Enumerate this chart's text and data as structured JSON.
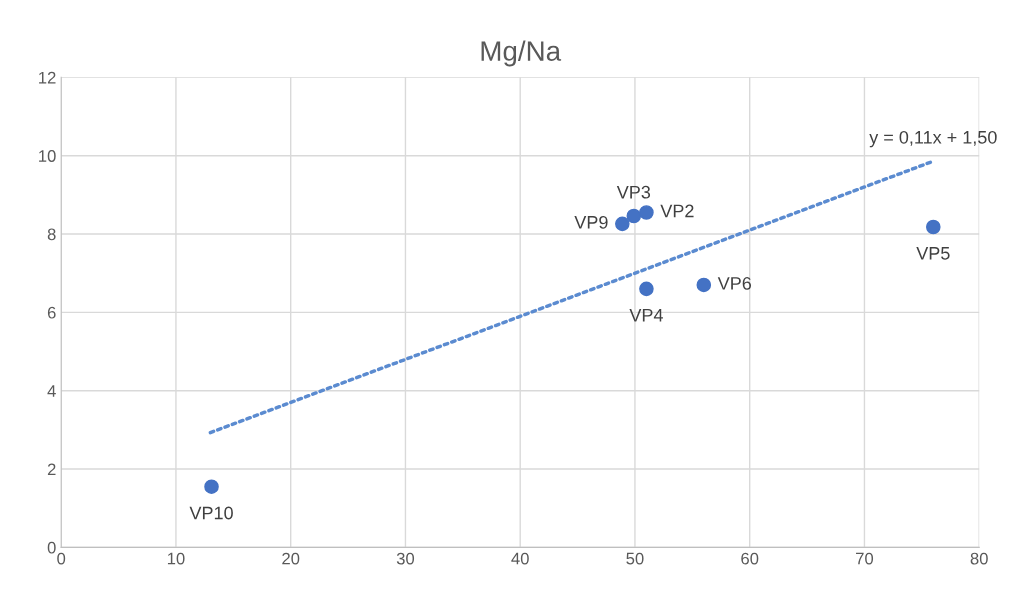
{
  "chart_data": {
    "type": "scatter",
    "title": "Mg/Na",
    "xlim": [
      0,
      80
    ],
    "xticks": [
      0,
      10,
      20,
      30,
      40,
      50,
      60,
      70,
      80
    ],
    "ylim": [
      0,
      12
    ],
    "yticks": [
      0,
      2,
      4,
      6,
      8,
      10,
      12
    ],
    "grid": true,
    "legend": false,
    "series": [
      {
        "color": "#4472c4",
        "marker": "circle",
        "x": [
          13.1,
          48.9,
          49.9,
          51,
          51,
          56,
          76
        ],
        "values": [
          1.55,
          8.26,
          8.46,
          8.55,
          6.6,
          6.7,
          8.18
        ]
      },
      {
        "type": "line",
        "color": "#5b8bd0",
        "line_style": "dotted",
        "marker": "none",
        "x": [
          13,
          76
        ],
        "values": [
          2.93,
          9.86
        ]
      }
    ],
    "annotations": [
      {
        "text": "VP10",
        "x": 13.1,
        "y": 1.55
      },
      {
        "text": "VP9",
        "x": 48.9,
        "y": 8.26
      },
      {
        "text": "VP3",
        "x": 49.9,
        "y": 8.46
      },
      {
        "text": "VP2",
        "x": 51,
        "y": 8.55
      },
      {
        "text": "VP4",
        "x": 51,
        "y": 6.6
      },
      {
        "text": "VP6",
        "x": 56,
        "y": 6.7
      },
      {
        "text": "VP5",
        "x": 76,
        "y": 8.18
      },
      {
        "text": "y = 0,11x + 1,50",
        "x": 76,
        "y": 9.86
      }
    ]
  }
}
